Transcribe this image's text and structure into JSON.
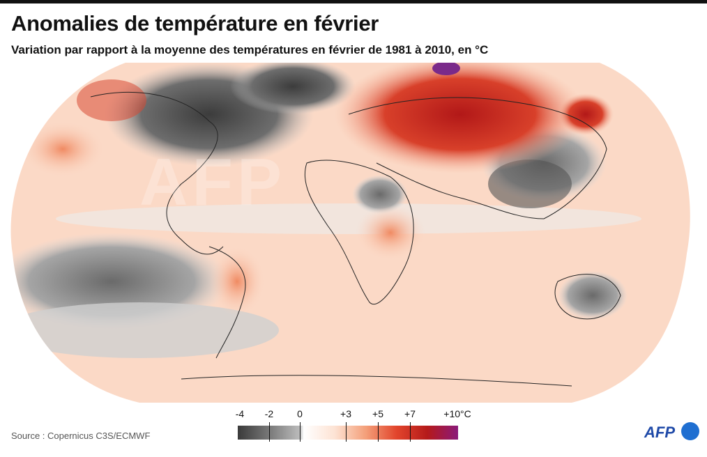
{
  "title": "Anomalies de température en février",
  "subtitle": "Variation par rapport à la moyenne des températures en février de 1981 à 2010, en °C",
  "source": "Source : Copernicus C3S/ECMWF",
  "watermark": "AFP",
  "logo": "AFP",
  "legend": {
    "ticks": [
      "-4",
      "-2",
      "0",
      "+3",
      "+5",
      "+7",
      "+10°C"
    ],
    "colors": [
      "#3a3a3a",
      "#777777",
      "#bbbbbb",
      "#ffffff",
      "#f4a07a",
      "#e2452c",
      "#b51a1a",
      "#8b1a7a"
    ]
  }
}
